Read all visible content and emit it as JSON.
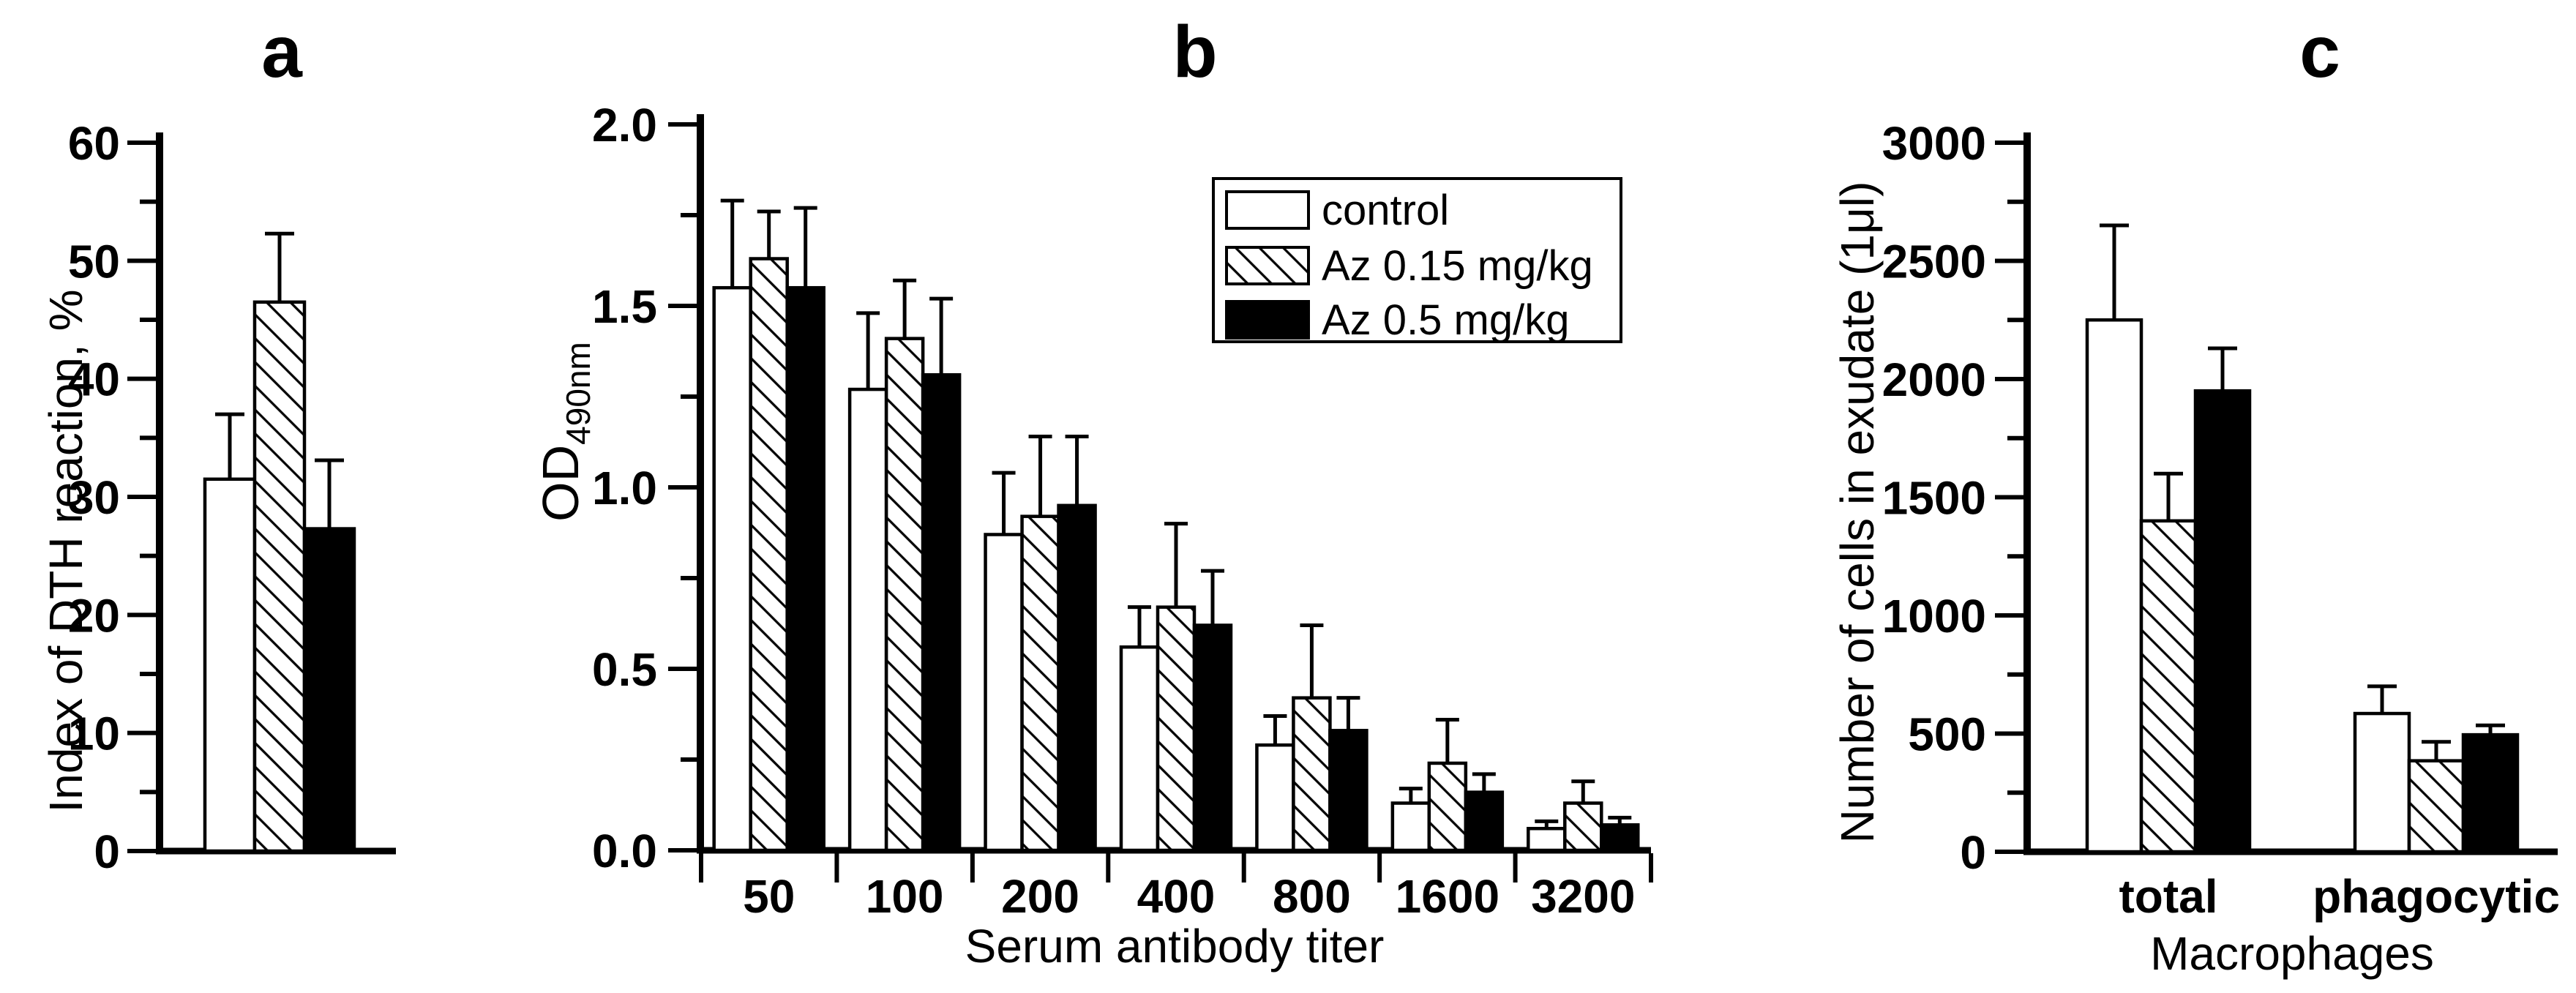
{
  "figure": {
    "background": "#ffffff",
    "foreground": "#000000"
  },
  "chart_data": {
    "type": "bar",
    "layout": "three-panel grouped bar figure, error bars upward, black and white scientific style",
    "panels": [
      {
        "id": "a",
        "title": "a",
        "type": "bar",
        "ylabel": "Index of DTH reaction, %",
        "xlabel": "",
        "ylim": [
          0,
          60
        ],
        "ytick_major": 10,
        "ytick_minor": 5,
        "ytick_labels": [
          "0",
          "10",
          "20",
          "30",
          "40",
          "50",
          "60"
        ],
        "categories": [
          ""
        ],
        "grid": "off",
        "series": [
          {
            "name": "control",
            "fill": "white",
            "values": [
              31.5
            ],
            "errors": [
              5.5
            ]
          },
          {
            "name": "Az 0.15 mg/kg",
            "fill": "hatch",
            "values": [
              46.5
            ],
            "errors": [
              5.8
            ]
          },
          {
            "name": "Az 0.5 mg/kg",
            "fill": "black",
            "values": [
              27.3
            ],
            "errors": [
              5.8
            ]
          }
        ]
      },
      {
        "id": "b",
        "title": "b",
        "type": "bar",
        "ylabel_base": "OD",
        "ylabel_sub": "490nm",
        "xlabel": "Serum antibody titer",
        "ylim": [
          0,
          2.0
        ],
        "ytick_major": 0.5,
        "ytick_minor": 0.25,
        "ytick_labels": [
          "0.0",
          "0.5",
          "1.0",
          "1.5",
          "2.0"
        ],
        "categories": [
          "50",
          "100",
          "200",
          "400",
          "800",
          "1600",
          "3200"
        ],
        "grid": "off",
        "legend": {
          "position": "top-right",
          "entries": [
            "control",
            "Az 0.15 mg/kg",
            "Az 0.5 mg/kg"
          ],
          "swatches": [
            "white",
            "hatch",
            "black"
          ]
        },
        "series": [
          {
            "name": "control",
            "fill": "white",
            "values": [
              1.55,
              1.27,
              0.87,
              0.56,
              0.29,
              0.13,
              0.06
            ],
            "errors": [
              0.24,
              0.21,
              0.17,
              0.11,
              0.08,
              0.04,
              0.02
            ]
          },
          {
            "name": "Az 0.15 mg/kg",
            "fill": "hatch",
            "values": [
              1.63,
              1.41,
              0.92,
              0.67,
              0.42,
              0.24,
              0.13
            ],
            "errors": [
              0.13,
              0.16,
              0.22,
              0.23,
              0.2,
              0.12,
              0.06
            ]
          },
          {
            "name": "Az 0.5 mg/kg",
            "fill": "black",
            "values": [
              1.55,
              1.31,
              0.95,
              0.62,
              0.33,
              0.16,
              0.07
            ],
            "errors": [
              0.22,
              0.21,
              0.19,
              0.15,
              0.09,
              0.05,
              0.02
            ]
          }
        ]
      },
      {
        "id": "c",
        "title": "c",
        "type": "bar",
        "ylabel": "Number of cells in exudate (1μl)",
        "xlabel": "Macrophages",
        "ylim": [
          0,
          3000
        ],
        "ytick_major": 500,
        "ytick_minor": 250,
        "ytick_labels": [
          "0",
          "500",
          "1000",
          "1500",
          "2000",
          "2500",
          "3000"
        ],
        "categories": [
          "total",
          "phagocytic"
        ],
        "grid": "off",
        "series": [
          {
            "name": "control",
            "fill": "white",
            "values": [
              2250,
              585
            ],
            "errors": [
              400,
              115
            ]
          },
          {
            "name": "Az 0.15 mg/kg",
            "fill": "hatch",
            "values": [
              1400,
              385
            ],
            "errors": [
              200,
              80
            ]
          },
          {
            "name": "Az 0.5 mg/kg",
            "fill": "black",
            "values": [
              1950,
              495
            ],
            "errors": [
              180,
              40
            ]
          }
        ]
      }
    ],
    "colors": {
      "bar_outline": "#000000",
      "solid_bar": "#000000",
      "open_bar": "#ffffff"
    }
  }
}
